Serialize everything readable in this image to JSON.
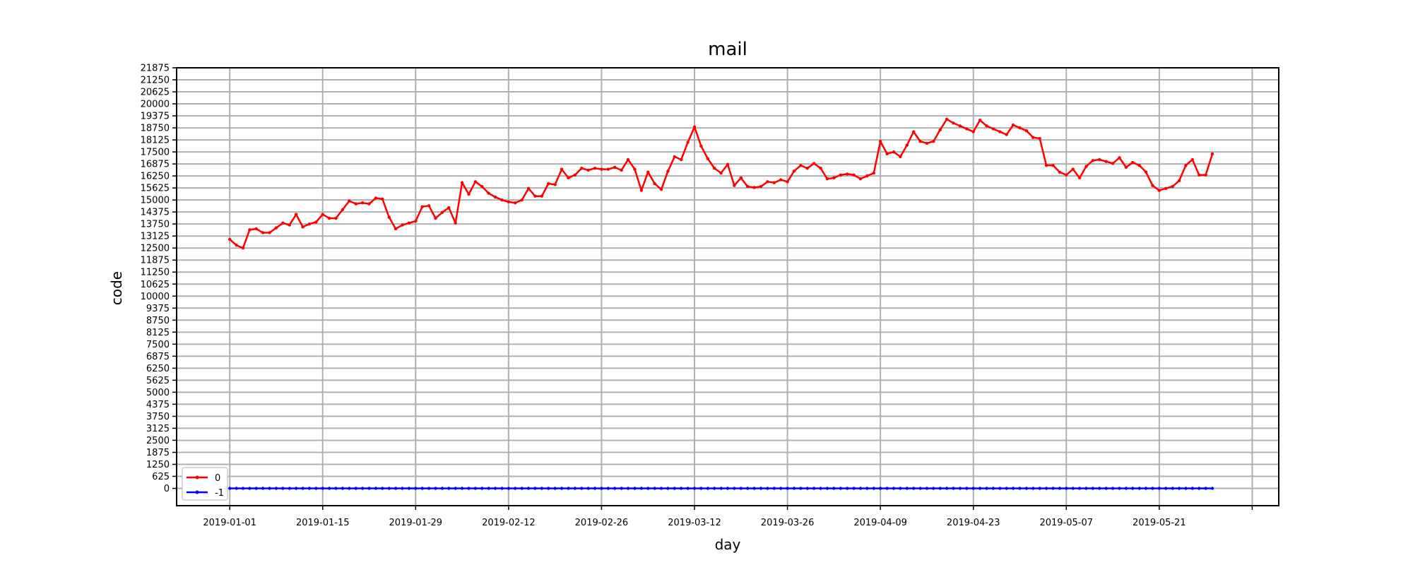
{
  "chart_data": {
    "type": "line",
    "title": "mail",
    "xlabel": "day",
    "ylabel": "code",
    "x_start": "2019-01-01",
    "x_end": "2019-05-28",
    "xlim": [
      "2018-12-24",
      "2019-06-08"
    ],
    "ylim": [
      -900,
      21875
    ],
    "yticks": [
      0,
      625,
      1250,
      1875,
      2500,
      3125,
      3750,
      4375,
      5000,
      5625,
      6250,
      6875,
      7500,
      8125,
      8750,
      9375,
      10000,
      10625,
      11250,
      11875,
      12500,
      13125,
      13750,
      14375,
      15000,
      15625,
      16250,
      16875,
      17500,
      18125,
      18750,
      19375,
      20000,
      20625,
      21250,
      21875
    ],
    "xticks": [
      "2019-01-01",
      "2019-01-15",
      "2019-01-29",
      "2019-02-12",
      "2019-02-26",
      "2019-03-12",
      "2019-03-26",
      "2019-04-09",
      "2019-04-23",
      "2019-05-07",
      "2019-05-21",
      "2019-06-04"
    ],
    "xticklabels": [
      "2019-01-01",
      "2019-01-15",
      "2019-01-29",
      "2019-02-12",
      "2019-02-26",
      "2019-03-12",
      "2019-03-26",
      "2019-04-09",
      "2019-04-23",
      "2019-05-07",
      "2019-05-21",
      ""
    ],
    "grid": true,
    "legend_position": "bottom-left",
    "series": [
      {
        "name": "0",
        "color": "#ff0000",
        "values": [
          12950,
          12650,
          12500,
          13450,
          13500,
          13300,
          13300,
          13550,
          13800,
          13700,
          14250,
          13600,
          13750,
          13850,
          14250,
          14050,
          14050,
          14500,
          14950,
          14800,
          14850,
          14800,
          15100,
          15050,
          14100,
          13500,
          13700,
          13800,
          13900,
          14650,
          14700,
          14050,
          14350,
          14600,
          13800,
          15900,
          15300,
          15950,
          15700,
          15350,
          15150,
          15000,
          14900,
          14850,
          15000,
          15600,
          15200,
          15200,
          15850,
          15800,
          16600,
          16150,
          16300,
          16650,
          16550,
          16650,
          16600,
          16600,
          16700,
          16550,
          17100,
          16600,
          15500,
          16450,
          15850,
          15550,
          16500,
          17250,
          17100,
          18000,
          18800,
          17800,
          17150,
          16650,
          16400,
          16850,
          15750,
          16150,
          15700,
          15650,
          15700,
          15950,
          15900,
          16050,
          15950,
          16500,
          16800,
          16650,
          16900,
          16650,
          16100,
          16150,
          16300,
          16350,
          16300,
          16100,
          16250,
          16400,
          18050,
          17400,
          17500,
          17250,
          17850,
          18550,
          18050,
          17950,
          18050,
          18650,
          19200,
          19000,
          18850,
          18700,
          18550,
          19150,
          18850,
          18700,
          18550,
          18400,
          18900,
          18750,
          18600,
          18250,
          18200,
          16800,
          16800,
          16450,
          16300,
          16600,
          16150,
          16750,
          17050,
          17100,
          17000,
          16900,
          17200,
          16700,
          16950,
          16800,
          16450,
          15750,
          15500,
          15600,
          15700,
          16000,
          16800,
          17100,
          16300,
          16300,
          17400
        ]
      },
      {
        "name": "-1",
        "color": "#0000ff",
        "values": [
          0,
          0,
          0,
          0,
          0,
          0,
          0,
          0,
          0,
          0,
          0,
          0,
          0,
          0,
          0,
          0,
          0,
          0,
          0,
          0,
          0,
          0,
          0,
          0,
          0,
          0,
          0,
          0,
          0,
          0,
          0,
          0,
          0,
          0,
          0,
          0,
          0,
          0,
          0,
          0,
          0,
          0,
          0,
          0,
          0,
          0,
          0,
          0,
          0,
          0,
          0,
          0,
          0,
          0,
          0,
          0,
          0,
          0,
          0,
          0,
          0,
          0,
          0,
          0,
          0,
          0,
          0,
          0,
          0,
          0,
          0,
          0,
          0,
          0,
          0,
          0,
          0,
          0,
          0,
          0,
          0,
          0,
          0,
          0,
          0,
          0,
          0,
          0,
          0,
          0,
          0,
          0,
          0,
          0,
          0,
          0,
          0,
          0,
          0,
          0,
          0,
          0,
          0,
          0,
          0,
          0,
          0,
          0,
          0,
          0,
          0,
          0,
          0,
          0,
          0,
          0,
          0,
          0,
          0,
          0,
          0,
          0,
          0,
          0,
          0,
          0,
          0,
          0,
          0,
          0,
          0,
          0,
          0,
          0,
          0,
          0,
          0,
          0,
          0,
          0,
          0,
          0,
          0,
          0,
          0,
          0,
          0,
          0,
          0
        ]
      }
    ]
  }
}
